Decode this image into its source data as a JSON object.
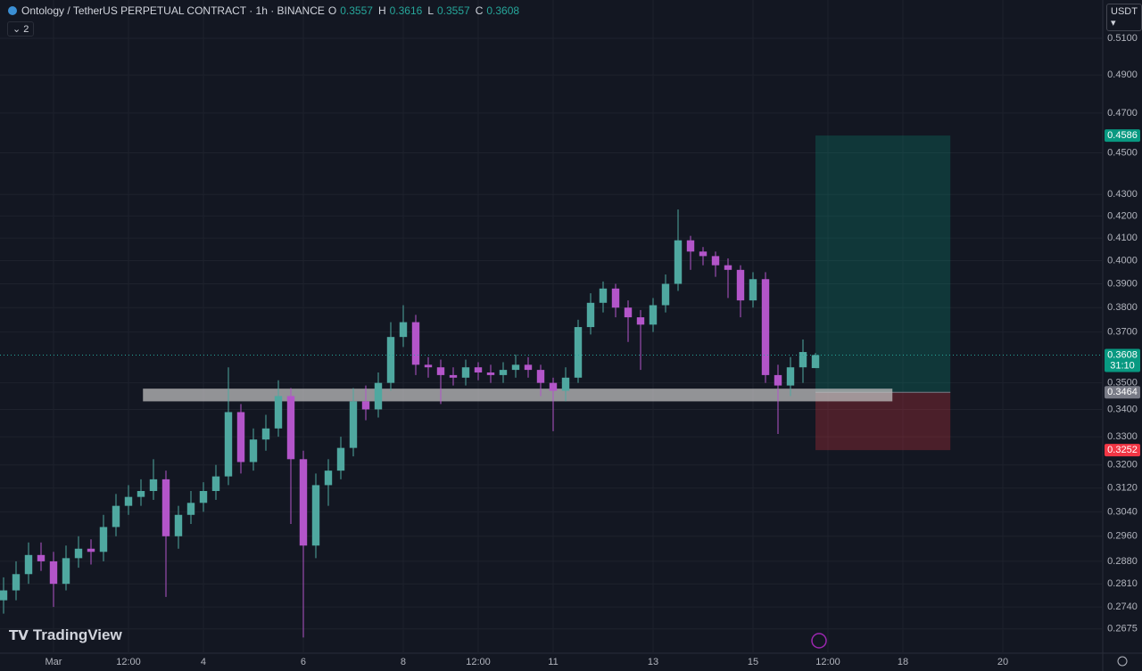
{
  "chart_data": {
    "type": "candlestick",
    "title": "Ontology / TetherUS PERPETUAL CONTRACT · 1h · BINANCE",
    "ohlc_labels": [
      "O",
      "H",
      "L",
      "C"
    ],
    "indicator_count": "2",
    "currency": "USDT",
    "countdown": "31:10",
    "watermark": "TradingView",
    "log_scale": true,
    "grid": true,
    "up_color": "#4fa8a0",
    "down_color": "#b355c9",
    "xlim": [
      -0.0714,
      22.0
    ],
    "xticks": [
      {
        "value": 1,
        "label": "Mar"
      },
      {
        "value": 2.5,
        "label": "12:00"
      },
      4,
      6,
      8,
      {
        "value": 9.5,
        "label": "12:00"
      },
      11,
      13,
      15,
      {
        "value": 16.5,
        "label": "12:00"
      },
      18,
      20
    ],
    "ylim": [
      0.2605,
      0.5318
    ],
    "yticks": [
      {
        "value": 0.51,
        "label": "0.5100"
      },
      {
        "value": 0.49,
        "label": "0.4900"
      },
      {
        "value": 0.47,
        "label": "0.4700"
      },
      {
        "value": 0.45,
        "label": "0.4500"
      },
      {
        "value": 0.43,
        "label": "0.4300"
      },
      {
        "value": 0.42,
        "label": "0.4200"
      },
      {
        "value": 0.41,
        "label": "0.4100"
      },
      {
        "value": 0.4,
        "label": "0.4000"
      },
      {
        "value": 0.39,
        "label": "0.3900"
      },
      {
        "value": 0.38,
        "label": "0.3800"
      },
      {
        "value": 0.37,
        "label": "0.3700"
      },
      {
        "value": 0.35,
        "label": "0.3500"
      },
      {
        "value": 0.34,
        "label": "0.3400"
      },
      {
        "value": 0.33,
        "label": "0.3300"
      },
      {
        "value": 0.32,
        "label": "0.3200"
      },
      {
        "value": 0.312,
        "label": "0.3120"
      },
      {
        "value": 0.304,
        "label": "0.3040"
      },
      {
        "value": 0.296,
        "label": "0.2960"
      },
      {
        "value": 0.288,
        "label": "0.2880"
      },
      {
        "value": 0.281,
        "label": "0.2810"
      },
      {
        "value": 0.274,
        "label": "0.2740"
      },
      {
        "value": 0.2675,
        "label": "0.2675"
      }
    ],
    "x": [
      0,
      0.25,
      0.5,
      0.75,
      1,
      1.25,
      1.5,
      1.75,
      2,
      2.25,
      2.5,
      2.75,
      3,
      3.25,
      3.5,
      3.75,
      4,
      4.25,
      4.5,
      4.75,
      5,
      5.25,
      5.5,
      5.75,
      6,
      6.25,
      6.5,
      6.75,
      7,
      7.25,
      7.5,
      7.75,
      8,
      8.25,
      8.5,
      8.75,
      9,
      9.25,
      9.5,
      9.75,
      10,
      10.25,
      10.5,
      10.75,
      11,
      11.25,
      11.5,
      11.75,
      12,
      12.25,
      12.5,
      12.75,
      13,
      13.25,
      13.5,
      13.75,
      14,
      14.25,
      14.5,
      14.75,
      15,
      15.25,
      15.5,
      15.75,
      16,
      16.25
    ],
    "open": [
      0.276,
      0.279,
      0.284,
      0.29,
      0.288,
      0.281,
      0.289,
      0.292,
      0.291,
      0.299,
      0.306,
      0.309,
      0.311,
      0.315,
      0.296,
      0.303,
      0.307,
      0.311,
      0.316,
      0.339,
      0.321,
      0.329,
      0.333,
      0.345,
      0.322,
      0.293,
      0.313,
      0.318,
      0.326,
      0.343,
      0.34,
      0.35,
      0.368,
      0.374,
      0.357,
      0.356,
      0.353,
      0.352,
      0.356,
      0.354,
      0.353,
      0.355,
      0.357,
      0.355,
      0.35,
      0.347,
      0.352,
      0.372,
      0.382,
      0.388,
      0.38,
      0.376,
      0.373,
      0.381,
      0.39,
      0.409,
      0.404,
      0.402,
      0.398,
      0.396,
      0.383,
      0.392,
      0.353,
      0.349,
      0.356,
      0.3557
    ],
    "high": [
      0.283,
      0.288,
      0.294,
      0.294,
      0.291,
      0.293,
      0.296,
      0.295,
      0.303,
      0.31,
      0.313,
      0.315,
      0.322,
      0.318,
      0.306,
      0.311,
      0.314,
      0.32,
      0.356,
      0.342,
      0.333,
      0.338,
      0.351,
      0.348,
      0.325,
      0.317,
      0.322,
      0.33,
      0.348,
      0.349,
      0.354,
      0.374,
      0.381,
      0.377,
      0.36,
      0.359,
      0.356,
      0.359,
      0.358,
      0.357,
      0.358,
      0.361,
      0.36,
      0.357,
      0.352,
      0.356,
      0.375,
      0.386,
      0.391,
      0.39,
      0.383,
      0.379,
      0.384,
      0.394,
      0.423,
      0.411,
      0.406,
      0.404,
      0.401,
      0.398,
      0.395,
      0.395,
      0.357,
      0.36,
      0.367,
      0.3616
    ],
    "low": [
      0.272,
      0.276,
      0.281,
      0.285,
      0.274,
      0.279,
      0.286,
      0.287,
      0.288,
      0.296,
      0.303,
      0.306,
      0.308,
      0.277,
      0.292,
      0.3,
      0.304,
      0.308,
      0.313,
      0.317,
      0.318,
      0.325,
      0.33,
      0.3,
      0.265,
      0.289,
      0.306,
      0.315,
      0.323,
      0.336,
      0.337,
      0.347,
      0.364,
      0.353,
      0.352,
      0.342,
      0.349,
      0.349,
      0.351,
      0.35,
      0.35,
      0.352,
      0.352,
      0.345,
      0.332,
      0.343,
      0.35,
      0.369,
      0.378,
      0.376,
      0.366,
      0.355,
      0.37,
      0.378,
      0.387,
      0.396,
      0.398,
      0.393,
      0.384,
      0.376,
      0.38,
      0.35,
      0.331,
      0.345,
      0.35,
      0.3557
    ],
    "close": [
      0.279,
      0.284,
      0.29,
      0.288,
      0.281,
      0.289,
      0.292,
      0.291,
      0.299,
      0.306,
      0.309,
      0.311,
      0.315,
      0.296,
      0.303,
      0.307,
      0.311,
      0.316,
      0.339,
      0.321,
      0.329,
      0.333,
      0.345,
      0.322,
      0.293,
      0.313,
      0.318,
      0.326,
      0.343,
      0.34,
      0.35,
      0.368,
      0.374,
      0.357,
      0.356,
      0.353,
      0.352,
      0.356,
      0.354,
      0.353,
      0.355,
      0.357,
      0.355,
      0.35,
      0.347,
      0.352,
      0.372,
      0.382,
      0.388,
      0.38,
      0.376,
      0.373,
      0.381,
      0.39,
      0.409,
      0.404,
      0.402,
      0.398,
      0.396,
      0.383,
      0.392,
      0.353,
      0.349,
      0.356,
      0.362,
      0.3608
    ],
    "zone": {
      "low": 0.343,
      "high": 0.3478,
      "x_range": [
        2.79,
        17.79
      ]
    },
    "position": {
      "entry": 0.3464,
      "target": 0.4586,
      "stop": 0.3252,
      "x_range": [
        16.25,
        18.95
      ]
    }
  }
}
